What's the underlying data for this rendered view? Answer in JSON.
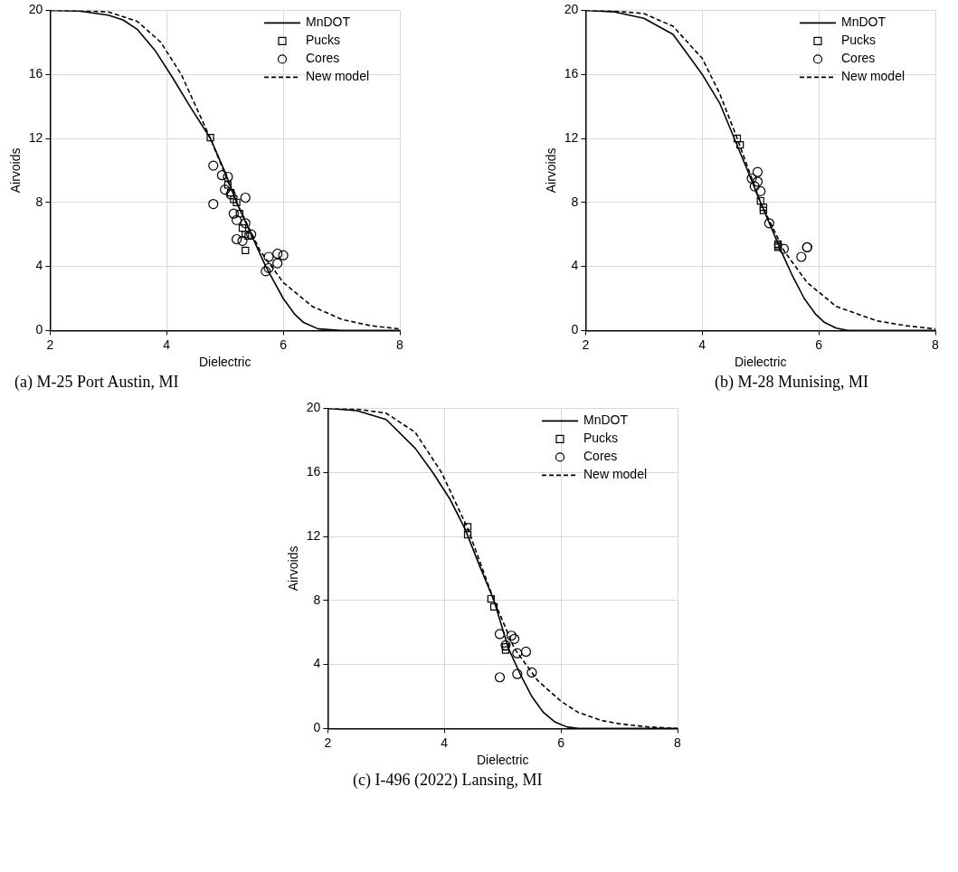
{
  "chart_data": [
    {
      "type": "scatter",
      "xlabel": "Dielectric",
      "ylabel": "Airvoids",
      "xlim": [
        2,
        8
      ],
      "xticks": [
        2,
        4,
        6,
        8
      ],
      "ylim": [
        0,
        20
      ],
      "yticks": [
        0,
        4,
        8,
        12,
        16,
        20
      ],
      "grid": true,
      "legend": "top right",
      "annotations": [
        "(a)  M-25 Port Austin, MI"
      ],
      "series": [
        {
          "name": "MnDOT",
          "type": "line",
          "color": "#000000",
          "line_style": "solid",
          "marker": "none",
          "x": [
            2,
            2.5,
            3,
            3.25,
            3.5,
            3.8,
            4.1,
            4.4,
            4.75,
            5.0,
            5.2,
            5.45,
            5.7,
            6.0,
            6.2,
            6.35,
            6.6,
            7,
            8
          ],
          "values": [
            20,
            19.95,
            19.7,
            19.4,
            18.8,
            17.5,
            15.8,
            14.0,
            12.0,
            9.9,
            8.0,
            6.0,
            4.0,
            2.0,
            1.0,
            0.5,
            0.1,
            0,
            0
          ]
        },
        {
          "name": "Pucks",
          "type": "scatter",
          "color": "#000000",
          "marker": "square",
          "x": [
            4.75,
            5.05,
            5.1,
            5.15,
            5.2,
            5.25,
            5.3,
            5.35,
            5.4,
            5.35
          ],
          "values": [
            12.05,
            9.1,
            8.6,
            8.2,
            8.0,
            7.3,
            6.4,
            6.0,
            5.9,
            5.0
          ]
        },
        {
          "name": "Cores",
          "type": "scatter",
          "color": "#000000",
          "marker": "circle",
          "x": [
            4.8,
            4.8,
            4.95,
            5.05,
            5.0,
            5.1,
            5.15,
            5.35,
            5.2,
            5.35,
            5.2,
            5.3,
            5.45,
            5.75,
            5.9,
            6.0,
            5.75,
            5.7,
            5.9
          ],
          "values": [
            10.3,
            7.9,
            9.7,
            9.6,
            8.8,
            8.5,
            7.3,
            8.3,
            6.9,
            6.7,
            5.7,
            5.6,
            6.0,
            4.6,
            4.8,
            4.7,
            3.9,
            3.7,
            4.2
          ]
        },
        {
          "name": "New model",
          "type": "line",
          "color": "#000000",
          "line_style": "dashed",
          "marker": "none",
          "x": [
            2,
            2.5,
            3,
            3.5,
            3.9,
            4.25,
            4.75,
            5.2,
            5.6,
            6.0,
            6.5,
            7,
            7.5,
            8
          ],
          "values": [
            20,
            19.97,
            19.9,
            19.3,
            18.0,
            16.0,
            12.0,
            8.0,
            5.0,
            3.0,
            1.5,
            0.7,
            0.3,
            0.1
          ]
        }
      ]
    },
    {
      "type": "scatter",
      "xlabel": "Dielectric",
      "ylabel": "Airvoids",
      "xlim": [
        2,
        8
      ],
      "xticks": [
        2,
        4,
        6,
        8
      ],
      "ylim": [
        0,
        20
      ],
      "yticks": [
        0,
        4,
        8,
        12,
        16,
        20
      ],
      "grid": true,
      "legend": "top right",
      "annotations": [
        "(b)  M-28 Munising, MI"
      ],
      "series": [
        {
          "name": "MnDOT",
          "type": "line",
          "color": "#000000",
          "line_style": "solid",
          "marker": "none",
          "x": [
            2,
            2.5,
            3,
            3.5,
            4,
            4.3,
            4.55,
            4.8,
            5.0,
            5.2,
            5.35,
            5.55,
            5.75,
            5.95,
            6.1,
            6.3,
            6.5,
            7,
            8
          ],
          "values": [
            20,
            19.9,
            19.5,
            18.5,
            16.0,
            14.2,
            12.0,
            9.8,
            8.0,
            6.3,
            5.0,
            3.4,
            2.0,
            1.0,
            0.5,
            0.15,
            0,
            0,
            0
          ]
        },
        {
          "name": "Pucks",
          "type": "scatter",
          "color": "#000000",
          "marker": "square",
          "x": [
            4.6,
            4.65,
            5.0,
            5.05,
            5.05,
            5.3,
            5.3,
            5.3
          ],
          "values": [
            12.0,
            11.6,
            8.1,
            7.7,
            7.5,
            5.4,
            5.2,
            5.3
          ]
        },
        {
          "name": "Cores",
          "type": "scatter",
          "color": "#000000",
          "marker": "circle",
          "x": [
            4.85,
            4.95,
            4.9,
            4.95,
            5.0,
            5.15,
            5.4,
            5.7,
            5.8,
            5.8
          ],
          "values": [
            9.5,
            9.9,
            9.0,
            9.3,
            8.7,
            6.7,
            5.1,
            4.6,
            5.2,
            5.2
          ]
        },
        {
          "name": "New model",
          "type": "line",
          "color": "#000000",
          "line_style": "dashed",
          "marker": "none",
          "x": [
            2,
            2.5,
            3,
            3.5,
            4,
            4.3,
            4.6,
            5.0,
            5.4,
            5.8,
            6.3,
            7,
            7.5,
            8
          ],
          "values": [
            20,
            19.95,
            19.8,
            19.0,
            17.0,
            14.8,
            12.0,
            8.0,
            5.0,
            3.0,
            1.5,
            0.6,
            0.3,
            0.1
          ]
        }
      ]
    },
    {
      "type": "scatter",
      "xlabel": "Dielectric",
      "ylabel": "Airvoids",
      "xlim": [
        2,
        8
      ],
      "xticks": [
        2,
        4,
        6,
        8
      ],
      "ylim": [
        0,
        20
      ],
      "yticks": [
        0,
        4,
        8,
        12,
        16,
        20
      ],
      "grid": true,
      "legend": "top right",
      "annotations": [
        "(c)  I-496 (2022) Lansing, MI"
      ],
      "series": [
        {
          "name": "MnDOT",
          "type": "line",
          "color": "#000000",
          "line_style": "solid",
          "marker": "none",
          "x": [
            2,
            2.5,
            3,
            3.5,
            3.8,
            4.1,
            4.35,
            4.6,
            4.85,
            5.1,
            5.3,
            5.5,
            5.7,
            5.9,
            6.1,
            6.3,
            7,
            8
          ],
          "values": [
            20,
            19.85,
            19.3,
            17.5,
            16.0,
            14.3,
            12.5,
            10.2,
            8.0,
            5.0,
            3.4,
            2.0,
            1.0,
            0.4,
            0.1,
            0,
            0,
            0
          ]
        },
        {
          "name": "Pucks",
          "type": "scatter",
          "color": "#000000",
          "marker": "square",
          "x": [
            4.4,
            4.4,
            4.8,
            4.85,
            5.05,
            5.05
          ],
          "values": [
            12.6,
            12.1,
            8.1,
            7.6,
            5.1,
            4.9
          ]
        },
        {
          "name": "Cores",
          "type": "scatter",
          "color": "#000000",
          "marker": "circle",
          "x": [
            4.95,
            5.15,
            5.2,
            5.05,
            5.25,
            5.4,
            5.25,
            4.95,
            5.5
          ],
          "values": [
            5.9,
            5.8,
            5.6,
            5.2,
            4.7,
            4.8,
            3.4,
            3.2,
            3.5
          ]
        },
        {
          "name": "New model",
          "type": "line",
          "color": "#000000",
          "line_style": "dashed",
          "marker": "none",
          "x": [
            2,
            2.5,
            3,
            3.5,
            3.95,
            4.4,
            4.85,
            5.2,
            5.6,
            6.0,
            6.3,
            6.7,
            7,
            7.5,
            8
          ],
          "values": [
            20,
            19.95,
            19.7,
            18.5,
            16.0,
            12.5,
            8.0,
            5.0,
            3.0,
            1.7,
            1.0,
            0.5,
            0.3,
            0.1,
            0
          ]
        }
      ]
    }
  ]
}
